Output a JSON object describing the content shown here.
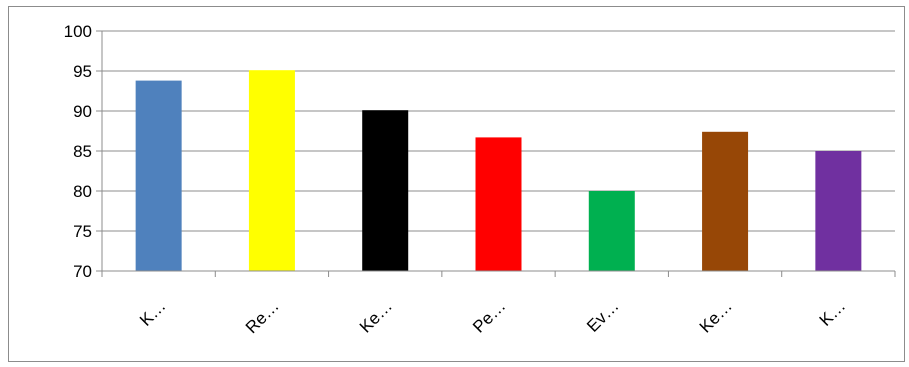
{
  "chart_data": {
    "type": "bar",
    "categories": [
      "K…",
      "Re…",
      "Ke…",
      "Pe…",
      "Ev…",
      "Ke…",
      "K…"
    ],
    "values": [
      93.8,
      95.1,
      90.1,
      86.7,
      80.0,
      87.4,
      85.0
    ],
    "colors": [
      "#4f81bd",
      "#ffff00",
      "#000000",
      "#ff0000",
      "#00b050",
      "#974706",
      "#7030a0"
    ],
    "ylim": [
      70,
      100
    ],
    "yticks": [
      70,
      75,
      80,
      85,
      90,
      95,
      100
    ],
    "grid": true,
    "title": "",
    "xlabel": "",
    "ylabel": ""
  }
}
